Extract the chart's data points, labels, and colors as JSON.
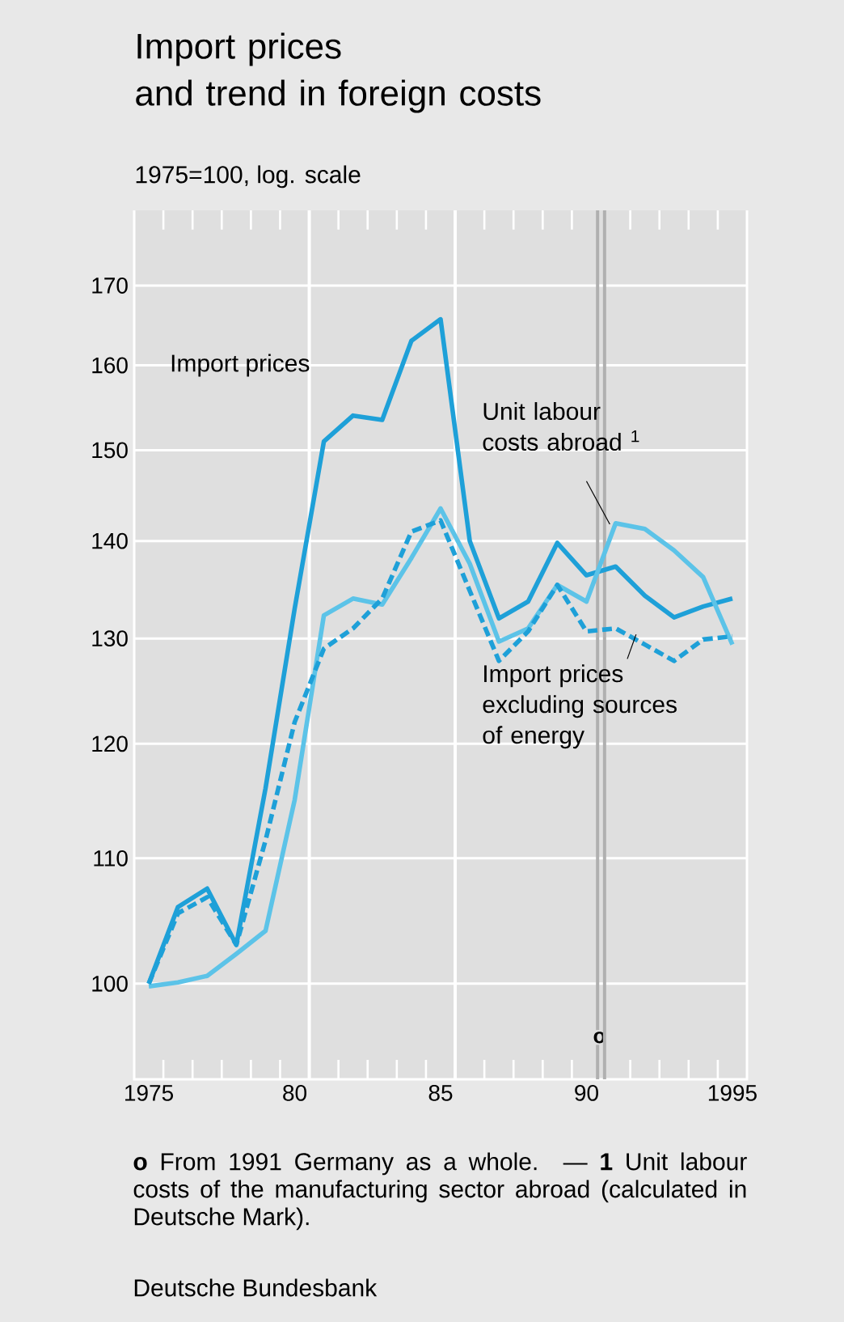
{
  "chart_data": {
    "type": "line",
    "title": "Import prices and trend in foreign costs",
    "subtitle": "1975=100, log. scale",
    "x": [
      1975,
      1976,
      1977,
      1978,
      1979,
      1980,
      1981,
      1982,
      1983,
      1984,
      1985,
      1986,
      1987,
      1988,
      1989,
      1990,
      1991,
      1992,
      1993,
      1994,
      1995
    ],
    "series": [
      {
        "name": "Import prices",
        "color": "#1ea0d8",
        "line_style": "solid",
        "values": [
          100,
          106,
          107.5,
          103,
          116,
          133,
          151,
          154,
          153.5,
          163,
          165.7,
          140,
          132,
          133.7,
          139.8,
          136.4,
          137.3,
          134.3,
          132.1,
          133.2,
          134
        ]
      },
      {
        "name": "Unit labour costs abroad $^{1}$",
        "color": "#5cc3e8",
        "line_style": "solid",
        "values": [
          99.8,
          100.1,
          100.6,
          102.3,
          104.1,
          115,
          132.3,
          134,
          133.4,
          138.2,
          143.5,
          137.6,
          129.7,
          131,
          135.4,
          133.7,
          141.9,
          141.3,
          139,
          136.2,
          129.4
        ]
      },
      {
        "name": "Import prices excluding sources of energy",
        "color": "#1ea0d8",
        "line_style": "dashed",
        "values": [
          100,
          105.5,
          106.8,
          103,
          111.5,
          122,
          129,
          131,
          134,
          141,
          142.2,
          134.8,
          127.8,
          130.7,
          135.4,
          130.7,
          131,
          129.4,
          127.8,
          129.9,
          130.2
        ]
      }
    ],
    "log": true,
    "ylim": [
      93,
      180
    ],
    "yticks": [
      100,
      110,
      120,
      130,
      140,
      150,
      160,
      170
    ],
    "xlim": [
      1974.5,
      1995.5
    ],
    "xticks": [
      {
        "value": 1975,
        "label": "1975"
      },
      {
        "value": 1980,
        "label": "80"
      },
      {
        "value": 1985,
        "label": "85"
      },
      {
        "value": 1990,
        "label": "90"
      },
      {
        "value": 1995,
        "label": "1995"
      },
      {
        "value": 1975.5,
        "label": null
      },
      {
        "value": 1976.5,
        "label": null
      },
      {
        "value": 1977.5,
        "label": null
      },
      {
        "value": 1978.5,
        "label": null
      },
      {
        "value": 1979.5,
        "label": null
      },
      {
        "value": 1981.5,
        "label": null
      },
      {
        "value": 1982.5,
        "label": null
      },
      {
        "value": 1983.5,
        "label": null
      },
      {
        "value": 1984.5,
        "label": null
      },
      {
        "value": 1986.5,
        "label": null
      },
      {
        "value": 1987.5,
        "label": null
      },
      {
        "value": 1988.5,
        "label": null
      },
      {
        "value": 1989.5,
        "label": null
      },
      {
        "value": 1991.5,
        "label": null
      },
      {
        "value": 1992.5,
        "label": null
      },
      {
        "value": 1993.5,
        "label": null
      },
      {
        "value": 1994.5,
        "label": null
      }
    ],
    "grid": "y",
    "legend": false,
    "marker": "none",
    "ref_lines": [
      {
        "axis": "x",
        "value": 1980.5,
        "color": "#ffffff"
      },
      {
        "axis": "x",
        "value": 1985.5,
        "color": "#ffffff"
      },
      {
        "axis": "x",
        "value": 1990.38,
        "color": "#b0b0b0",
        "label": "o"
      },
      {
        "axis": "x",
        "value": 1990.62,
        "color": "#b0b0b0"
      }
    ],
    "annotations": [
      "**o** From 1991 Germany as a whole. — **1** Unit labour costs of the manufacturing sector abroad (calculated in Deutsche Mark).",
      "Deutsche Bundesbank"
    ]
  }
}
